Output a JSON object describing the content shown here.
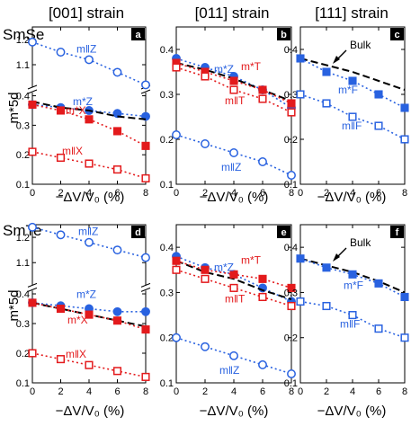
{
  "figure": {
    "col_titles": [
      "[001] strain",
      "[011] strain",
      "[111] strain"
    ],
    "row_titles": [
      "SmSe",
      "SmTe"
    ],
    "xlabel": "−ΔV/V₀  (%)",
    "ylabel": "m*5d",
    "bulk_label": "Bulk"
  },
  "colors": {
    "blue": "#2962e0",
    "red": "#e31a1c",
    "black": "#000000"
  },
  "chart_data": [
    {
      "panel": "a",
      "type": "line",
      "broken_axis": true,
      "x": [
        0,
        2,
        4,
        6,
        8
      ],
      "xlim": [
        0,
        8
      ],
      "xticks": [
        0,
        2,
        4,
        6,
        8
      ],
      "yticks_lower": [
        "0.1",
        "0.2",
        "0.3",
        "0.4"
      ],
      "yticks_upper": [
        "1.1",
        "1.2"
      ],
      "series": [
        {
          "name": "m‖Z",
          "color": "blue",
          "style": "dotted",
          "marker": "open-circle",
          "values": [
            1.19,
            1.15,
            1.12,
            1.07,
            1.02
          ]
        },
        {
          "name": "m*Z",
          "color": "blue",
          "style": "dotted",
          "marker": "filled-circle",
          "values": [
            0.37,
            0.36,
            0.35,
            0.34,
            0.33
          ]
        },
        {
          "name": "bulk",
          "color": "black",
          "style": "dashed",
          "marker": "none",
          "values": [
            0.38,
            0.36,
            0.35,
            0.33,
            0.32
          ]
        },
        {
          "name": "m*X",
          "color": "red",
          "style": "dotted",
          "marker": "filled-square",
          "values": [
            0.37,
            0.35,
            0.32,
            0.28,
            0.23
          ]
        },
        {
          "name": "m‖X",
          "color": "red",
          "style": "dotted",
          "marker": "open-square",
          "values": [
            0.21,
            0.19,
            0.17,
            0.15,
            0.12
          ]
        }
      ],
      "labels": [
        {
          "text": "m‖Z",
          "series": 0
        },
        {
          "text": "m*Z",
          "series": 1
        },
        {
          "text": "m*X",
          "series": 3
        },
        {
          "text": "m‖X",
          "series": 4
        }
      ]
    },
    {
      "panel": "b",
      "type": "line",
      "x": [
        0,
        2,
        4,
        6,
        8
      ],
      "xlim": [
        0,
        8
      ],
      "ylim": [
        0.1,
        0.45
      ],
      "xticks": [
        0,
        2,
        4,
        6,
        8
      ],
      "yticks": [
        "0.1",
        "0.2",
        "0.3",
        "0.4"
      ],
      "series": [
        {
          "name": "m*Z",
          "color": "blue",
          "style": "dotted",
          "marker": "filled-circle",
          "values": [
            0.38,
            0.36,
            0.34,
            0.31,
            0.27
          ]
        },
        {
          "name": "bulk",
          "color": "black",
          "style": "dashed",
          "marker": "none",
          "values": [
            0.37,
            0.355,
            0.335,
            0.31,
            0.285
          ]
        },
        {
          "name": "m*T",
          "color": "red",
          "style": "dotted",
          "marker": "filled-square",
          "values": [
            0.37,
            0.35,
            0.33,
            0.31,
            0.28
          ]
        },
        {
          "name": "m‖T",
          "color": "red",
          "style": "dotted",
          "marker": "open-square",
          "values": [
            0.36,
            0.34,
            0.31,
            0.29,
            0.26
          ]
        },
        {
          "name": "m‖Z",
          "color": "blue",
          "style": "dotted",
          "marker": "open-circle",
          "values": [
            0.21,
            0.19,
            0.17,
            0.15,
            0.12
          ]
        }
      ],
      "labels": [
        {
          "text": "m*Z",
          "series": 0
        },
        {
          "text": "m*T",
          "series": 2
        },
        {
          "text": "m‖T",
          "series": 3
        },
        {
          "text": "m‖Z",
          "series": 4
        }
      ]
    },
    {
      "panel": "c",
      "type": "line",
      "x": [
        0,
        2,
        4,
        6,
        8
      ],
      "xlim": [
        0,
        8
      ],
      "ylim": [
        0.1,
        0.45
      ],
      "xticks": [
        0,
        2,
        4,
        6,
        8
      ],
      "yticks": [
        "0.1",
        "0.2",
        "0.3",
        "0.4"
      ],
      "series": [
        {
          "name": "bulk",
          "color": "black",
          "style": "dashed",
          "marker": "none",
          "values": [
            0.38,
            0.365,
            0.35,
            0.33,
            0.31
          ]
        },
        {
          "name": "m*F",
          "color": "blue",
          "style": "dotted",
          "marker": "filled-square",
          "values": [
            0.38,
            0.35,
            0.33,
            0.3,
            0.27
          ]
        },
        {
          "name": "m‖F",
          "color": "blue",
          "style": "dotted",
          "marker": "open-square",
          "values": [
            0.3,
            0.28,
            0.25,
            0.23,
            0.2
          ]
        }
      ],
      "labels": [
        {
          "text": "m*F",
          "series": 1
        },
        {
          "text": "m‖F",
          "series": 2
        }
      ]
    },
    {
      "panel": "d",
      "type": "line",
      "broken_axis": true,
      "x": [
        0,
        2,
        4,
        6,
        8
      ],
      "xlim": [
        0,
        8
      ],
      "xticks": [
        0,
        2,
        4,
        6,
        8
      ],
      "yticks_lower": [
        "0.1",
        "0.2",
        "0.3",
        "0.4"
      ],
      "yticks_upper": [
        "1.1",
        "1.2"
      ],
      "series": [
        {
          "name": "m‖Z",
          "color": "blue",
          "style": "dotted",
          "marker": "open-circle",
          "values": [
            1.24,
            1.21,
            1.18,
            1.15,
            1.12
          ]
        },
        {
          "name": "m*Z",
          "color": "blue",
          "style": "dotted",
          "marker": "filled-circle",
          "values": [
            0.37,
            0.36,
            0.35,
            0.34,
            0.34
          ]
        },
        {
          "name": "bulk",
          "color": "black",
          "style": "dashed",
          "marker": "none",
          "values": [
            0.37,
            0.35,
            0.33,
            0.31,
            0.29
          ]
        },
        {
          "name": "m*X",
          "color": "red",
          "style": "dotted",
          "marker": "filled-square",
          "values": [
            0.37,
            0.35,
            0.33,
            0.31,
            0.28
          ]
        },
        {
          "name": "m‖X",
          "color": "red",
          "style": "dotted",
          "marker": "open-square",
          "values": [
            0.2,
            0.18,
            0.16,
            0.14,
            0.12
          ]
        }
      ],
      "labels": [
        {
          "text": "m‖Z",
          "series": 0
        },
        {
          "text": "m*Z",
          "series": 1
        },
        {
          "text": "m*X",
          "series": 3
        },
        {
          "text": "m‖X",
          "series": 4
        }
      ]
    },
    {
      "panel": "e",
      "type": "line",
      "x": [
        0,
        2,
        4,
        6,
        8
      ],
      "xlim": [
        0,
        8
      ],
      "ylim": [
        0.1,
        0.45
      ],
      "xticks": [
        0,
        2,
        4,
        6,
        8
      ],
      "yticks": [
        "0.1",
        "0.2",
        "0.3",
        "0.4"
      ],
      "series": [
        {
          "name": "m*Z",
          "color": "blue",
          "style": "dotted",
          "marker": "filled-circle",
          "values": [
            0.38,
            0.355,
            0.34,
            0.31,
            0.28
          ]
        },
        {
          "name": "bulk",
          "color": "black",
          "style": "dashed",
          "marker": "none",
          "values": [
            0.37,
            0.345,
            0.33,
            0.305,
            0.285
          ]
        },
        {
          "name": "m*T",
          "color": "red",
          "style": "dotted",
          "marker": "filled-square",
          "values": [
            0.37,
            0.35,
            0.34,
            0.33,
            0.31
          ]
        },
        {
          "name": "m‖T",
          "color": "red",
          "style": "dotted",
          "marker": "open-square",
          "values": [
            0.35,
            0.33,
            0.31,
            0.29,
            0.27
          ]
        },
        {
          "name": "m‖Z",
          "color": "blue",
          "style": "dotted",
          "marker": "open-circle",
          "values": [
            0.2,
            0.18,
            0.16,
            0.14,
            0.12
          ]
        }
      ],
      "labels": [
        {
          "text": "m*Z",
          "series": 0
        },
        {
          "text": "m*T",
          "series": 2
        },
        {
          "text": "m‖T",
          "series": 3
        },
        {
          "text": "m‖Z",
          "series": 4
        }
      ]
    },
    {
      "panel": "f",
      "type": "line",
      "x": [
        0,
        2,
        4,
        6,
        8
      ],
      "xlim": [
        0,
        8
      ],
      "ylim": [
        0.1,
        0.45
      ],
      "xticks": [
        0,
        2,
        4,
        6,
        8
      ],
      "yticks": [
        "0.1",
        "0.2",
        "0.3",
        "0.4"
      ],
      "series": [
        {
          "name": "bulk",
          "color": "black",
          "style": "dashed",
          "marker": "none",
          "values": [
            0.375,
            0.36,
            0.345,
            0.325,
            0.3
          ]
        },
        {
          "name": "m*F",
          "color": "blue",
          "style": "dotted",
          "marker": "filled-square",
          "values": [
            0.375,
            0.355,
            0.34,
            0.32,
            0.29
          ]
        },
        {
          "name": "m‖F",
          "color": "blue",
          "style": "dotted",
          "marker": "open-square",
          "values": [
            0.28,
            0.27,
            0.25,
            0.22,
            0.2
          ]
        }
      ],
      "labels": [
        {
          "text": "m*F",
          "series": 1
        },
        {
          "text": "m‖F",
          "series": 2
        }
      ]
    }
  ]
}
